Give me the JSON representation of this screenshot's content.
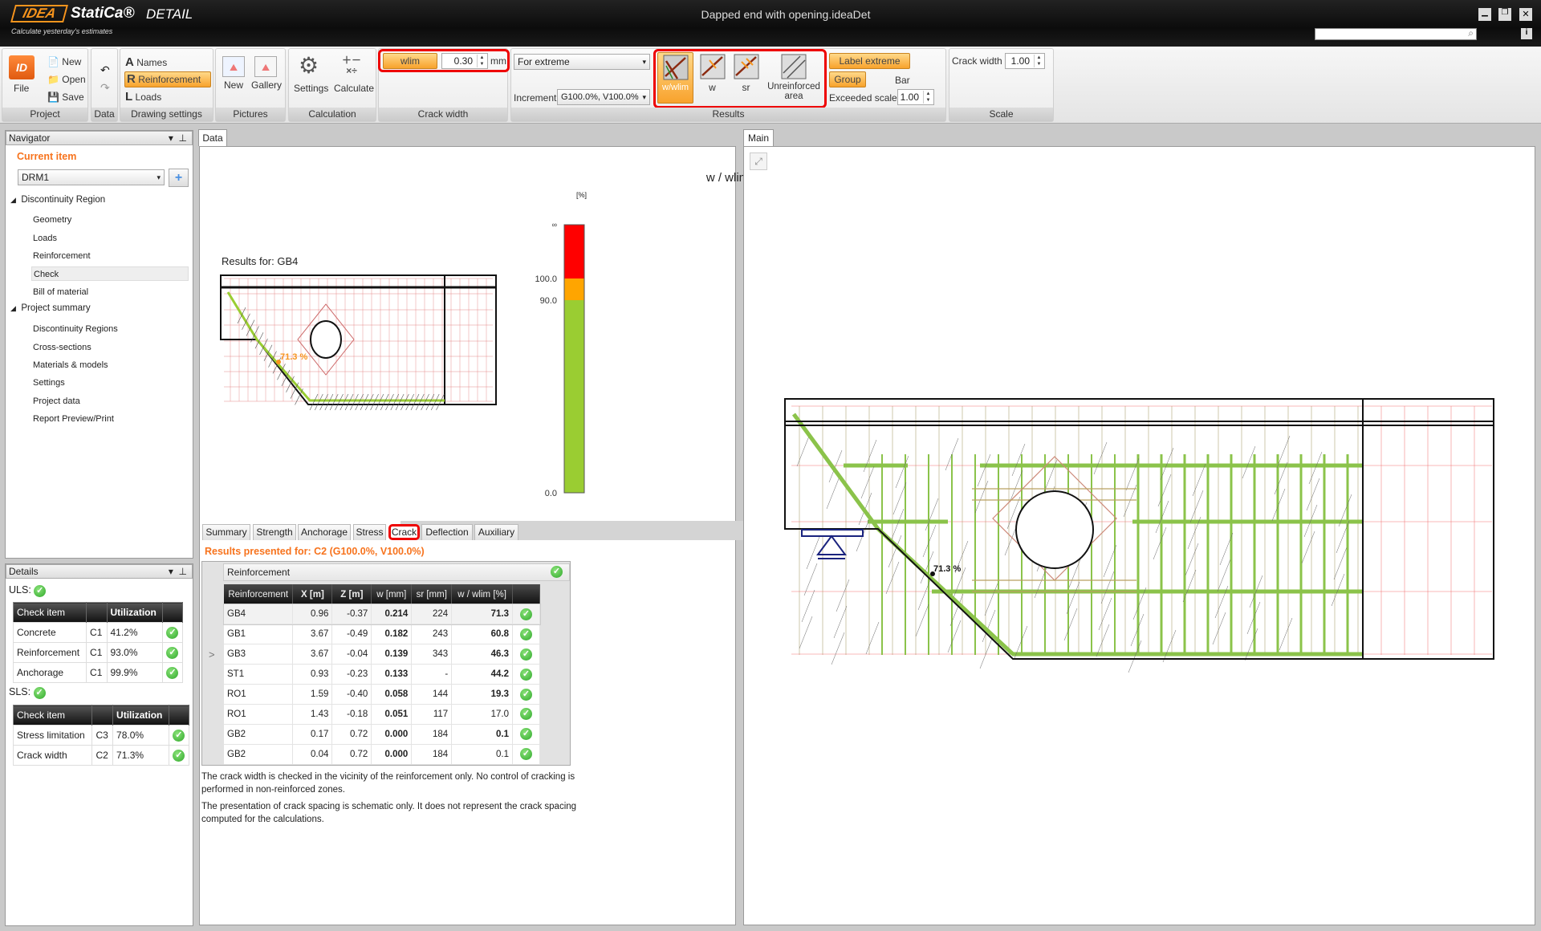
{
  "app": {
    "brand": "IDEA StatiCa",
    "product": "DETAIL",
    "tagline": "Calculate yesterday's estimates",
    "title": "Dapped end with opening.ideaDet"
  },
  "ribbon": {
    "project": {
      "label": "Project",
      "file": "File",
      "new": "New",
      "open": "Open",
      "save": "Save"
    },
    "data": {
      "label": "Data"
    },
    "drawing": {
      "label": "Drawing settings",
      "names": "Names",
      "reinforcement": "Reinforcement",
      "loads": "Loads"
    },
    "pictures": {
      "label": "Pictures",
      "new": "New",
      "gallery": "Gallery"
    },
    "calculation": {
      "label": "Calculation",
      "settings": "Settings",
      "calculate": "Calculate"
    },
    "crack_width": {
      "label": "Crack width",
      "wlim": "wlim",
      "value": "0.30",
      "unit": "mm"
    },
    "results": {
      "label": "Results",
      "extreme": "For extreme",
      "increment_label": "Increment",
      "increment": "G100.0%, V100.0%",
      "w_wlim": "w/wlim",
      "w": "w",
      "sr": "sr",
      "unreinforced": "Unreinforced area",
      "label_extreme": "Label extreme",
      "group": "Group",
      "bar": "Bar",
      "exceeded_scale_label": "Exceeded scale",
      "exceeded_scale": "1.00"
    },
    "scale": {
      "label": "Scale",
      "crack_width_label": "Crack width",
      "crack_width": "1.00"
    }
  },
  "navigator": {
    "title": "Navigator",
    "current_item": "Current item",
    "item": "DRM1",
    "groups": [
      {
        "label": "Discontinuity Region",
        "items": [
          "Geometry",
          "Loads",
          "Reinforcement",
          "Check",
          "Bill of material"
        ]
      },
      {
        "label": "Project summary",
        "items": [
          "Discontinuity Regions",
          "Cross-sections",
          "Materials & models",
          "Settings",
          "Project data",
          "Report Preview/Print"
        ]
      }
    ],
    "selected": "Check"
  },
  "details": {
    "title": "Details",
    "uls": "ULS:",
    "sls": "SLS:",
    "col_check": "Check item",
    "col_util": "Utilization",
    "uls_rows": [
      [
        "Concrete",
        "C1",
        "41.2%"
      ],
      [
        "Reinforcement",
        "C1",
        "93.0%"
      ],
      [
        "Anchorage",
        "C1",
        "99.9%"
      ]
    ],
    "sls_rows": [
      [
        "Stress limitation",
        "C3",
        "78.0%"
      ],
      [
        "Crack width",
        "C2",
        "71.3%"
      ]
    ]
  },
  "data_panel": {
    "tab": "Data",
    "results_for": "Results for: GB4",
    "label_value": "71.3 %",
    "legend": {
      "title": "w / wlim",
      "unit": "[%]",
      "ticks": [
        "∞",
        "100.0",
        "90.0",
        "0.0"
      ],
      "colors": [
        "#ff0000",
        "#ffa500",
        "#9acd32"
      ]
    },
    "tabs": [
      "Summary",
      "Strength",
      "Anchorage",
      "Stress",
      "Crack",
      "Deflection",
      "Auxiliary"
    ],
    "active_tab": "Crack",
    "presented": "Results presented for: C2 (G100.0%, V100.0%)",
    "table_title": "Reinforcement",
    "columns": [
      "Reinforcement",
      "X [m]",
      "Z [m]",
      "w [mm]",
      "sr [mm]",
      "w / wlim [%]"
    ],
    "rows": [
      [
        "GB4",
        "0.96",
        "-0.37",
        "0.214",
        "224",
        "71.3",
        true
      ],
      [
        "GB1",
        "3.67",
        "-0.49",
        "0.182",
        "243",
        "60.8",
        true
      ],
      [
        "GB3",
        "3.67",
        "-0.04",
        "0.139",
        "343",
        "46.3",
        true
      ],
      [
        "ST1",
        "0.93",
        "-0.23",
        "0.133",
        "-",
        "44.2",
        true
      ],
      [
        "RO1",
        "1.59",
        "-0.40",
        "0.058",
        "144",
        "19.3",
        true
      ],
      [
        "RO1",
        "1.43",
        "-0.18",
        "0.051",
        "117",
        "17.0",
        false
      ],
      [
        "GB2",
        "0.17",
        "0.72",
        "0.000",
        "184",
        "0.1",
        true
      ],
      [
        "GB2",
        "0.04",
        "0.72",
        "0.000",
        "184",
        "0.1",
        false
      ]
    ],
    "note1a": "The crack width is checked in the vicinity of the reinforcement only. No control of cracking is",
    "note1b": "performed in non-reinforced zones.",
    "note2a": "The presentation of crack spacing is schematic only. It does not represent the crack spacing",
    "note2b": "computed for the calculations."
  },
  "main_panel": {
    "tab": "Main",
    "label_value": "71.3 %"
  },
  "colors": {
    "accent": "#f7941d",
    "highlight": "#ff0000",
    "ok": "#3cb43c"
  }
}
